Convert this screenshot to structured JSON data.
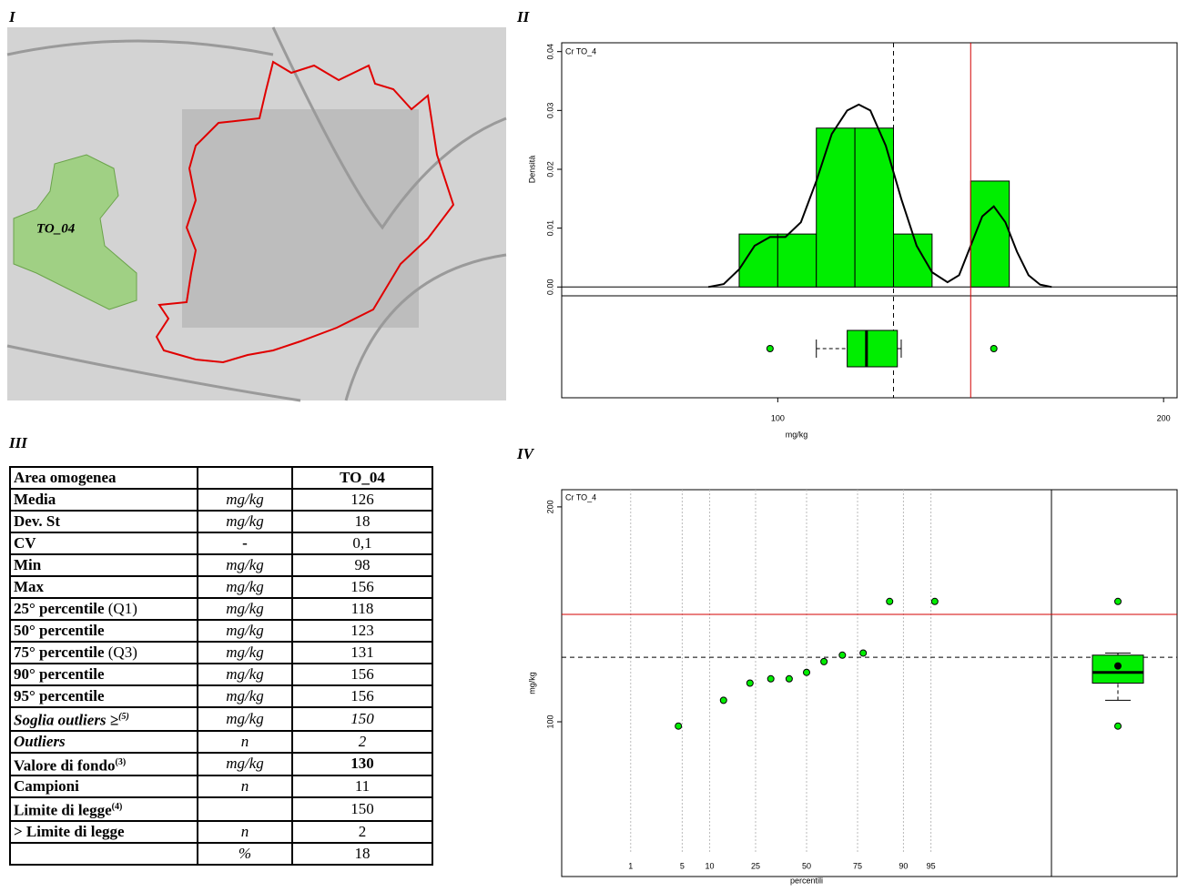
{
  "panels": [
    "I",
    "II",
    "III",
    "IV"
  ],
  "map": {
    "area_label": "TO_04"
  },
  "chart_data": [
    {
      "type": "histogram",
      "title": "Cr TO_4",
      "ylabel": "Densità",
      "xlabel": "mg/kg",
      "bins": [
        90,
        100,
        110,
        120,
        130,
        140,
        150,
        160
      ],
      "values": [
        0.009,
        0.009,
        0.027,
        0.027,
        0.009,
        0,
        0.018
      ],
      "color": "#00ee00",
      "density": {
        "x": [
          82,
          86,
          90,
          94,
          98,
          102,
          106,
          110,
          114,
          118,
          121,
          124,
          128,
          132,
          136,
          140,
          144,
          147,
          150,
          153,
          156,
          159,
          162,
          165,
          168,
          171
        ],
        "y": [
          0,
          0.0005,
          0.003,
          0.007,
          0.0085,
          0.0085,
          0.011,
          0.018,
          0.026,
          0.03,
          0.031,
          0.03,
          0.024,
          0.015,
          0.007,
          0.0025,
          0.0008,
          0.002,
          0.007,
          0.012,
          0.0137,
          0.011,
          0.006,
          0.002,
          0.0004,
          0
        ]
      },
      "boxplot": {
        "whisker_low": 110,
        "q1": 118,
        "median": 123,
        "q3": 131,
        "whisker_high": 132,
        "outliers": [
          98,
          156
        ]
      },
      "reference_lines": [
        {
          "value": 130,
          "color": "#000000",
          "dashed": true
        },
        {
          "value": 150,
          "color": "#d40000"
        }
      ],
      "xlim": [
        44,
        203.5
      ],
      "xticks": [
        100,
        200
      ],
      "ylim": [
        -0.0015,
        0.0415
      ],
      "yticks": [
        {
          "value": 0,
          "label": "0.00"
        },
        0.01,
        0.02,
        0.03,
        0.04
      ]
    },
    {
      "type": "scatter",
      "title": "Cr TO_4",
      "ylabel": "mg/kg",
      "xlabel": "percentili",
      "xscale": "probit",
      "x": [
        4.5,
        13.6,
        22.7,
        31.8,
        40.9,
        50,
        59.1,
        68.2,
        77.3,
        86.4,
        95.5
      ],
      "values": [
        98,
        110,
        118,
        120,
        120,
        123,
        128,
        131,
        132,
        156,
        156
      ],
      "color": "#00ee00",
      "boxplot": {
        "whisker_low": 110,
        "q1": 118,
        "median": 123,
        "q3": 131,
        "whisker_high": 132,
        "mean": 126,
        "outliers": [
          98,
          156
        ]
      },
      "reference_lines": [
        {
          "value": 130,
          "color": "#000000",
          "dashed": true
        },
        {
          "value": 150,
          "color": "#d40000"
        }
      ],
      "xlim": [
        0.06,
        99.94
      ],
      "xticks": [
        1,
        5,
        10,
        25,
        50,
        75,
        90,
        95
      ],
      "ylim": [
        28,
        208
      ],
      "yticks": [
        100,
        200
      ]
    }
  ],
  "table": {
    "rows": [
      {
        "label": "Area omogenea",
        "value": "TO_04"
      },
      {
        "label": "Media",
        "unit": "mg/kg",
        "value": "126"
      },
      {
        "label": "Dev. St",
        "unit": "mg/kg",
        "value": "18"
      },
      {
        "label": "CV",
        "unit": "-",
        "value": "0,1"
      },
      {
        "label": "Min",
        "unit": "mg/kg",
        "value": "98"
      },
      {
        "label": "Max",
        "unit": "mg/kg",
        "value": "156"
      },
      {
        "label": "25° percentile",
        "note": "(Q1)",
        "unit": "mg/kg",
        "value": "118"
      },
      {
        "label": "50° percentile",
        "unit": "mg/kg",
        "value": "123"
      },
      {
        "label": "75° percentile",
        "note": "(Q3)",
        "unit": "mg/kg",
        "value": "131"
      },
      {
        "label": "90° percentile",
        "unit": "mg/kg",
        "value": "156"
      },
      {
        "label": "95° percentile",
        "unit": "mg/kg",
        "value": "156"
      },
      {
        "label": "Soglia outliers ≥",
        "sup": "(5)",
        "unit": "mg/kg",
        "value": "150"
      },
      {
        "label": "Outliers",
        "unit": "n",
        "value": "2"
      },
      {
        "label": "Valore di fondo",
        "sup": "(3)",
        "unit": "mg/kg",
        "value": "130"
      },
      {
        "label": "Campioni",
        "unit": "n",
        "value": "11"
      },
      {
        "label": "Limite di legge",
        "sup": "(4)",
        "value": "150"
      },
      {
        "label": "> Limite di legge",
        "unit": "n",
        "value": "2"
      },
      {
        "unit": "%",
        "value": "18"
      }
    ]
  }
}
